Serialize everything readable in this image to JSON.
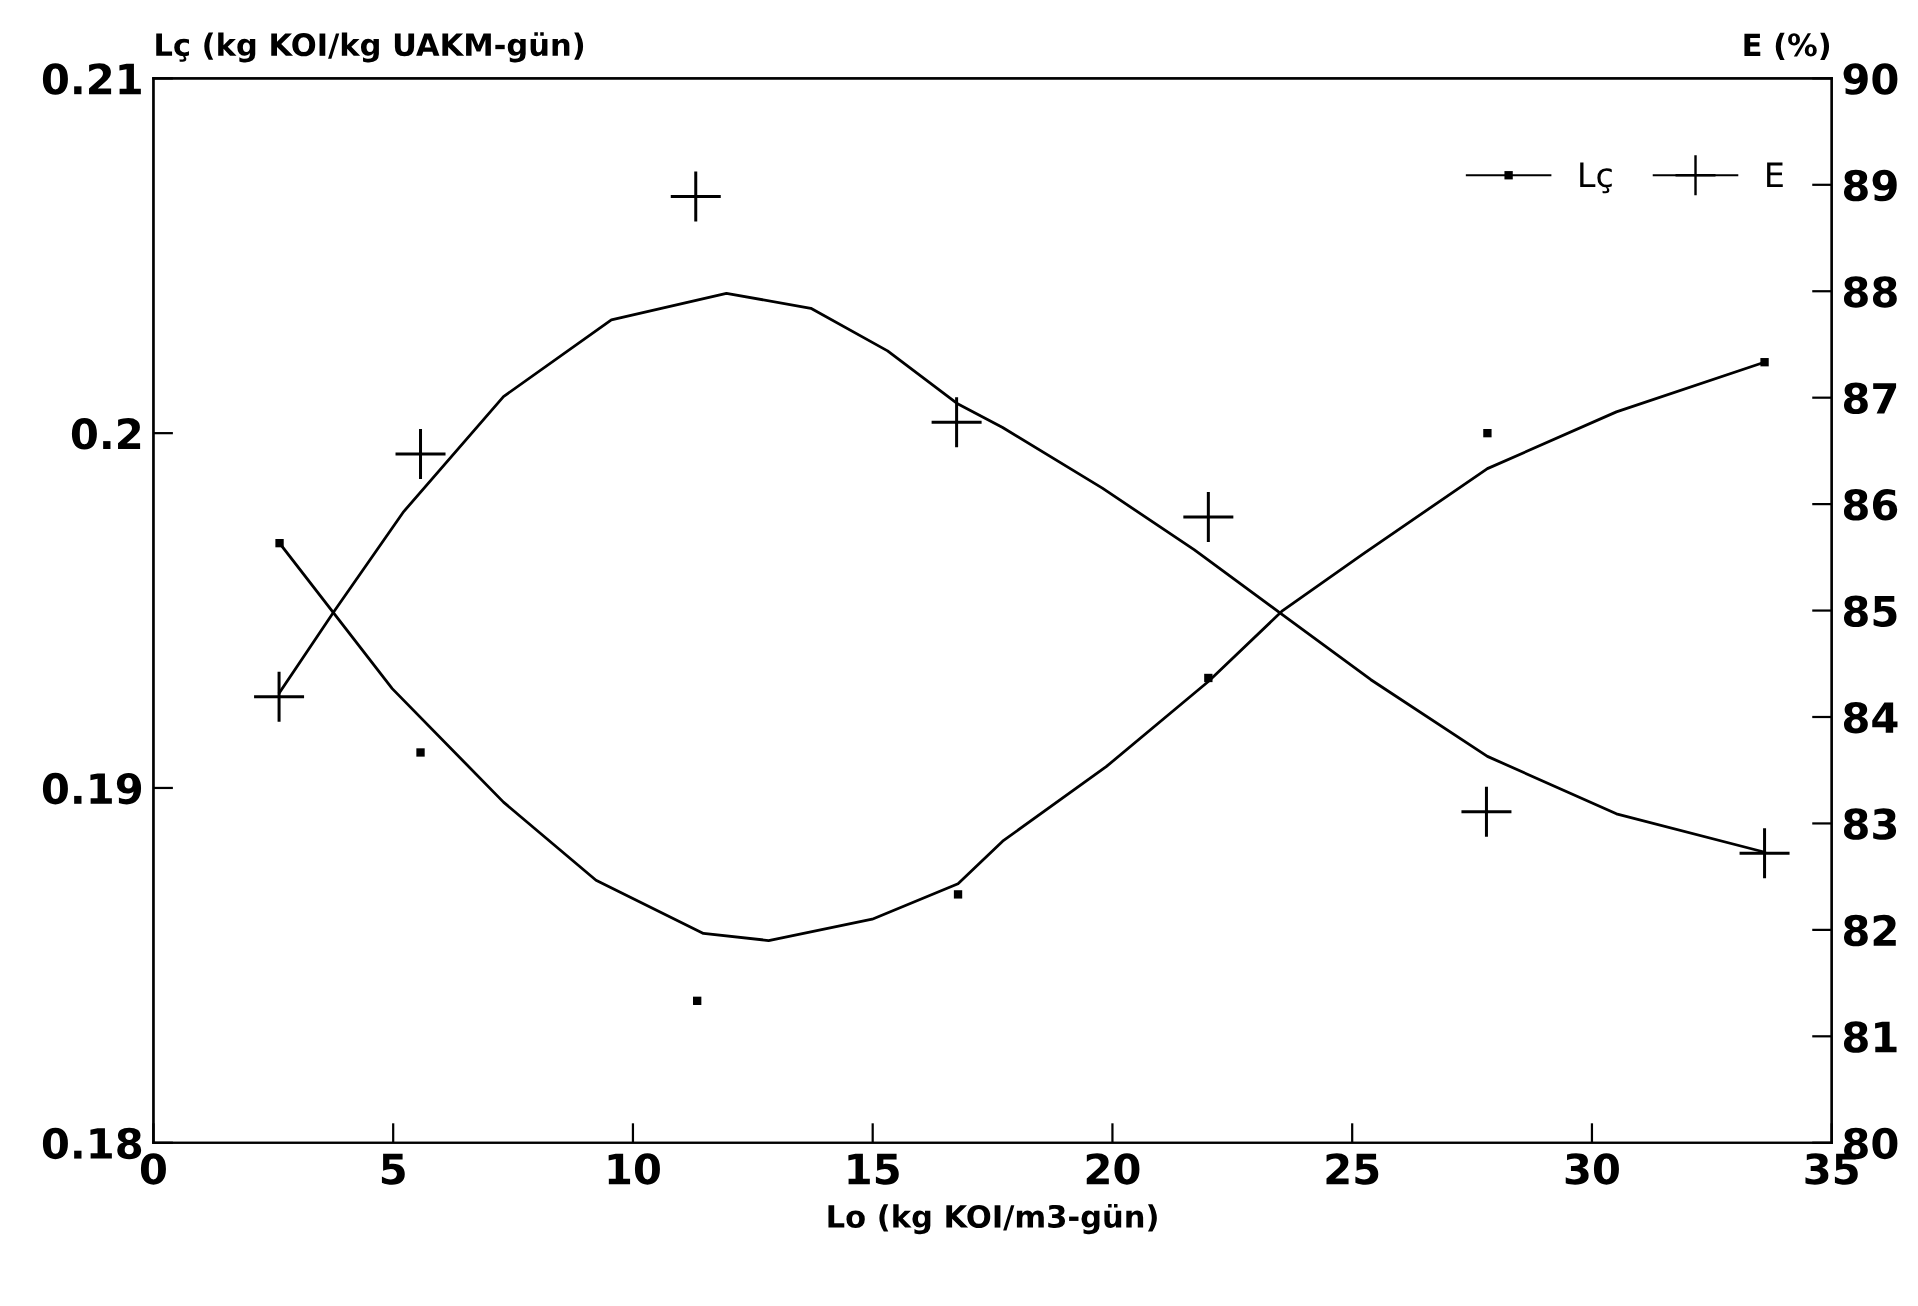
{
  "chart_data": {
    "type": "scatter",
    "xlabel": "Lo (kg KOI/m3-gün)",
    "ylabel": "Lç (kg KOI/kg UAKM-gün)",
    "y2label": "E (%)",
    "xlim": [
      0,
      35
    ],
    "xticks": [
      0,
      5,
      10,
      15,
      20,
      25,
      30,
      35
    ],
    "ylim": [
      0.18,
      0.21
    ],
    "yticks": [
      0.18,
      0.19,
      0.2,
      0.21
    ],
    "y2lim": [
      80,
      90
    ],
    "y2ticks": [
      80,
      81,
      82,
      83,
      84,
      85,
      86,
      87,
      88,
      89,
      90
    ],
    "legend": "top right",
    "grid": false,
    "series": [
      {
        "name": "Lç",
        "marker": "square",
        "color": "#000000",
        "x": [
          2.63,
          5.57,
          11.34,
          16.78,
          22.0,
          27.82,
          33.6
        ],
        "values": [
          0.1969,
          0.191,
          0.184,
          0.187,
          0.1931,
          0.2,
          0.202
        ]
      },
      {
        "name": "E",
        "marker": "cross",
        "axis": "y2",
        "color": "#000000",
        "x": [
          2.62,
          5.57,
          11.31,
          16.75,
          22.0,
          27.8,
          33.6
        ],
        "values": [
          84.19,
          86.47,
          88.89,
          86.77,
          85.88,
          83.11,
          82.72
        ]
      },
      {
        "type": "line",
        "line_style": "solid",
        "color": "#000000",
        "x": [
          2.63,
          4.98,
          7.3,
          9.23,
          11.47,
          12.83,
          14.99,
          16.78,
          17.71,
          19.87,
          22.0,
          23.55,
          25.23,
          27.82,
          30.51,
          33.6
        ],
        "values": [
          0.1969,
          0.1928,
          0.1896,
          0.1874,
          0.1859,
          0.1857,
          0.1863,
          0.1873,
          0.1885,
          0.1906,
          0.193,
          0.195,
          0.1966,
          0.199,
          0.2006,
          0.202
        ]
      },
      {
        "type": "line",
        "line_style": "solid",
        "axis": "y2",
        "color": "#000000",
        "x": [
          2.63,
          3.78,
          5.22,
          7.3,
          9.55,
          11.95,
          13.71,
          15.31,
          16.78,
          17.71,
          19.79,
          21.71,
          23.55,
          25.39,
          27.82,
          30.51,
          33.6
        ],
        "values": [
          84.23,
          85.0,
          85.93,
          87.01,
          87.73,
          87.98,
          87.84,
          87.44,
          86.94,
          86.72,
          86.15,
          85.57,
          84.96,
          84.35,
          83.63,
          83.09,
          82.73
        ]
      }
    ]
  }
}
